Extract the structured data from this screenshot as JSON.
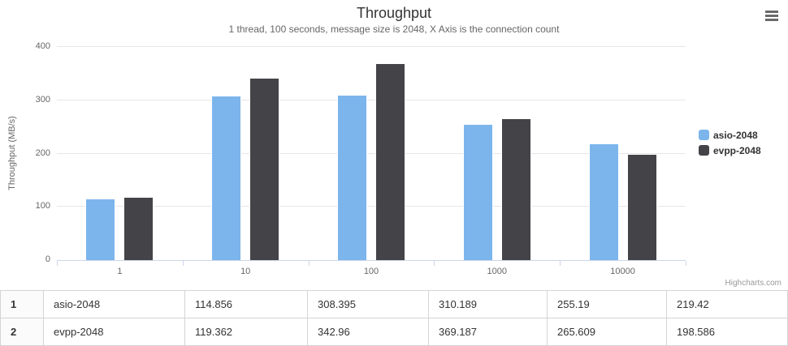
{
  "chart": {
    "title": "Throughput",
    "subtitle": "1 thread, 100 seconds, message size is 2048, X Axis is the connection count",
    "y_axis_title": "Throughput (MB/s)",
    "credit": "Highcharts.com",
    "menu_icon": "hamburger-icon"
  },
  "chart_data": {
    "type": "bar",
    "title": "Throughput",
    "subtitle": "1 thread, 100 seconds, message size is 2048, X Axis is the connection count",
    "categories": [
      "1",
      "10",
      "100",
      "1000",
      "10000"
    ],
    "series": [
      {
        "name": "asio-2048",
        "color": "#7cb5ec",
        "values": [
          114.856,
          308.395,
          310.189,
          255.19,
          219.42
        ]
      },
      {
        "name": "evpp-2048",
        "color": "#434348",
        "values": [
          119.362,
          342.96,
          369.187,
          265.609,
          198.586
        ]
      }
    ],
    "xlabel": "",
    "ylabel": "Throughput (MB/s)",
    "ylim": [
      0,
      400
    ],
    "yticks": [
      0,
      100,
      200,
      300,
      400
    ],
    "grid": true,
    "legend_position": "right"
  },
  "table": {
    "rows": [
      {
        "index": "1",
        "name": "asio-2048",
        "values": [
          "114.856",
          "308.395",
          "310.189",
          "255.19",
          "219.42"
        ]
      },
      {
        "index": "2",
        "name": "evpp-2048",
        "values": [
          "119.362",
          "342.96",
          "369.187",
          "265.609",
          "198.586"
        ]
      }
    ]
  },
  "colors": {
    "series_blue": "#7cb5ec",
    "series_dark": "#434348",
    "grid_line": "#e6e6e6",
    "axis_line": "#ccd6eb",
    "title_text": "#333333",
    "muted_text": "#666666",
    "credit_text": "#999999",
    "table_border": "#d4d4d4"
  }
}
